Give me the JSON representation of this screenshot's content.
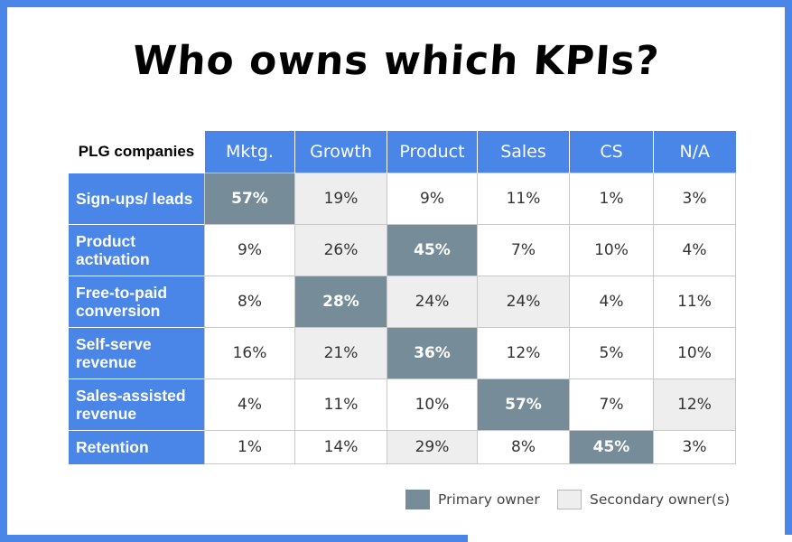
{
  "title": "Who owns which KPIs?",
  "table": {
    "corner_label": "PLG companies",
    "columns": [
      "Mktg.",
      "Growth",
      "Product",
      "Sales",
      "CS",
      "N/A"
    ],
    "rows": [
      {
        "label": "Sign-ups/ leads",
        "values": [
          "57%",
          "19%",
          "9%",
          "11%",
          "1%",
          "3%"
        ],
        "roles": [
          "primary",
          "secondary",
          "",
          "",
          "",
          ""
        ]
      },
      {
        "label": "Product activation",
        "values": [
          "9%",
          "26%",
          "45%",
          "7%",
          "10%",
          "4%"
        ],
        "roles": [
          "",
          "secondary",
          "primary",
          "",
          "",
          ""
        ]
      },
      {
        "label": "Free-to-paid conversion",
        "values": [
          "8%",
          "28%",
          "24%",
          "24%",
          "4%",
          "11%"
        ],
        "roles": [
          "",
          "primary",
          "secondary",
          "secondary",
          "",
          ""
        ]
      },
      {
        "label": "Self-serve revenue",
        "values": [
          "16%",
          "21%",
          "36%",
          "12%",
          "5%",
          "10%"
        ],
        "roles": [
          "",
          "secondary",
          "primary",
          "",
          "",
          ""
        ]
      },
      {
        "label": "Sales-assisted revenue",
        "values": [
          "4%",
          "11%",
          "10%",
          "57%",
          "7%",
          "12%"
        ],
        "roles": [
          "",
          "",
          "",
          "primary",
          "",
          "secondary"
        ]
      },
      {
        "label": "Retention",
        "values": [
          "1%",
          "14%",
          "29%",
          "8%",
          "45%",
          "3%"
        ],
        "roles": [
          "",
          "",
          "secondary",
          "",
          "primary",
          ""
        ]
      }
    ]
  },
  "legend": {
    "primary_label": "Primary owner",
    "secondary_label": "Secondary owner(s)"
  },
  "colors": {
    "accent_blue": "#4a86e8",
    "primary_fill": "#768c98",
    "secondary_fill": "#eeeeee"
  }
}
